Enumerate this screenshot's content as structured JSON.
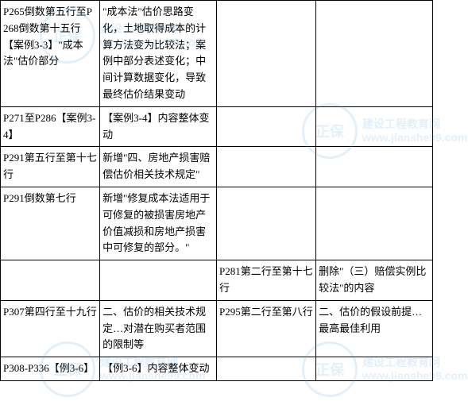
{
  "watermark": {
    "logo_text": "正保",
    "line1": "建设工程教育网",
    "line2": "www.jianshe99.com"
  },
  "table": {
    "rows": [
      {
        "c1": "P265倒数第五行至P268倒数第十五行【案例3-3】\"成本法\"估价部分",
        "c2": "\"成本法\"估价思路变化，土地取得成本的计算方法变为比较法；案例中部分表述变化；中间计算数据变化，导致最终估价结果变动",
        "c3": "",
        "c4": ""
      },
      {
        "c1": "P271至P286【案例3-4】",
        "c2": "【案例3-4】内容整体变动",
        "c3": "",
        "c4": ""
      },
      {
        "c1": "P291第五行至第十七行",
        "c2": "新增\"四、房地产损害赔偿估价相关技术规定\"",
        "c3": "",
        "c4": ""
      },
      {
        "c1": "P291倒数第七行",
        "c2": "新增\"修复成本法适用于可修复的被损害房地产价值减损和房地产损害中可修复的部分。\"",
        "c3": "",
        "c4": ""
      },
      {
        "c1": "",
        "c2": "",
        "c3": "P281第二行至第十七行",
        "c4": "删除\"（三）赔偿实例比较法\"的内容"
      },
      {
        "c1": "P307第四行至十九行",
        "c2": "二、估价的相关技术规定…对潜在购买者范围的限制等",
        "c3": "P295第二行至第八行",
        "c4": "二、估价的假设前提…最高最佳利用"
      },
      {
        "c1": "P308-P336【例3-6】",
        "c2": "【例3-6】内容整体变动",
        "c3": "",
        "c4": ""
      }
    ]
  }
}
